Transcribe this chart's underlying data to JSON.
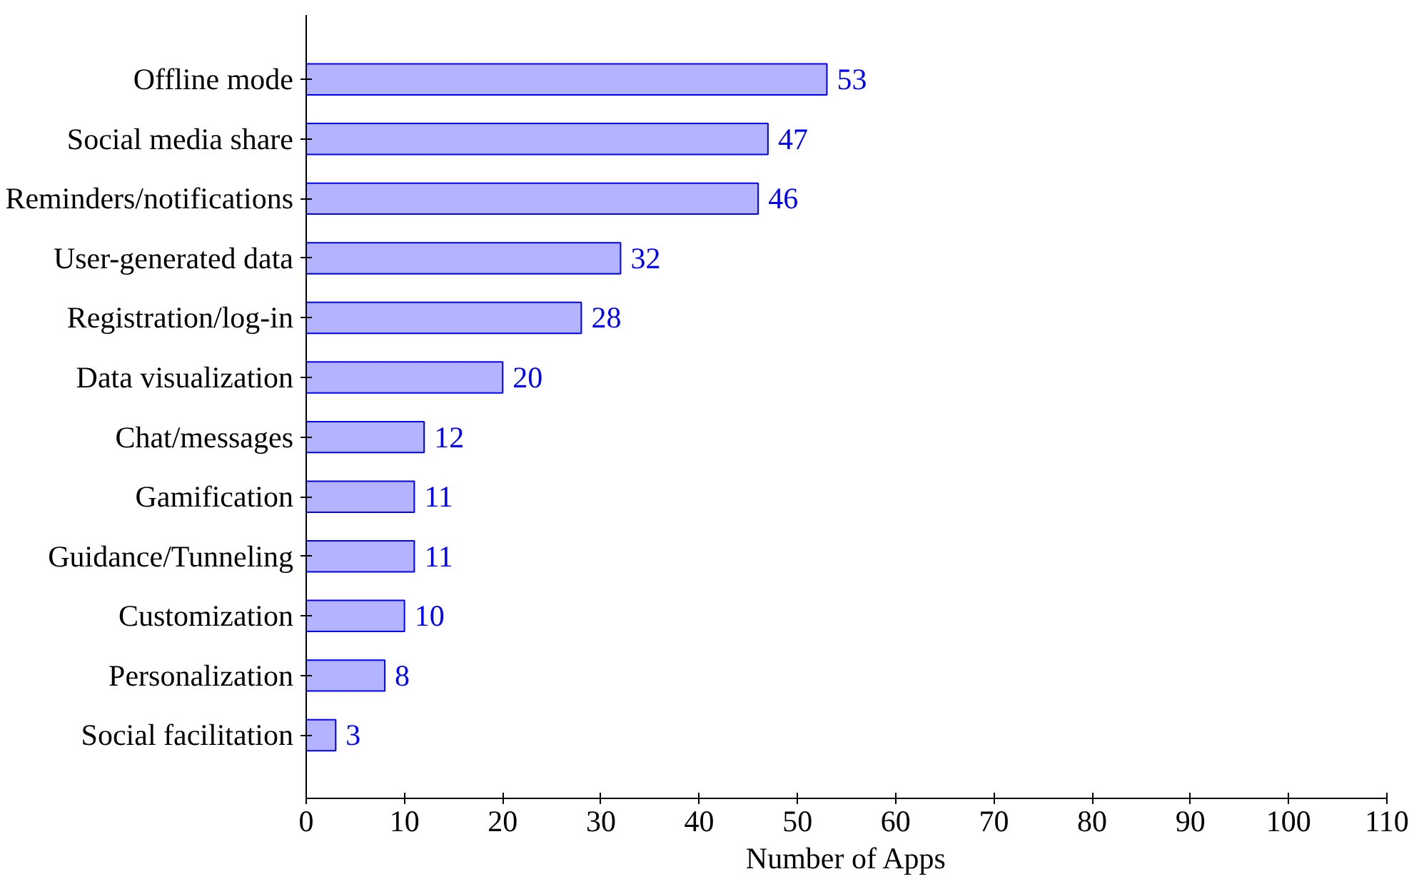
{
  "chart_data": {
    "type": "bar",
    "orientation": "horizontal",
    "xlabel": "Number of Apps",
    "categories": [
      "Offline mode",
      "Social media share",
      "Reminders/notifications",
      "User-generated data",
      "Registration/log-in",
      "Data visualization",
      "Chat/messages",
      "Gamification",
      "Guidance/Tunneling",
      "Customization",
      "Personalization",
      "Social facilitation"
    ],
    "values": [
      53,
      47,
      46,
      32,
      28,
      20,
      12,
      11,
      11,
      10,
      8,
      3
    ],
    "color": "#b3b3ff",
    "xlim": [
      0,
      110
    ],
    "xticks": [
      0,
      10,
      20,
      30,
      40,
      50,
      60,
      70,
      80,
      90,
      100,
      110
    ],
    "data_labels": true,
    "grid": false
  }
}
